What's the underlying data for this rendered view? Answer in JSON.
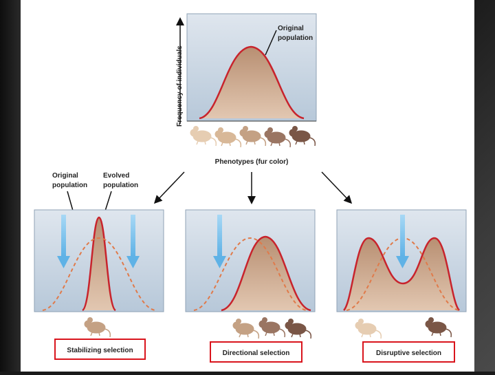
{
  "top": {
    "ylabel": "Frequency of individuals",
    "curve_label_line1": "Original",
    "curve_label_line2": "population",
    "xlabel": "Phenotypes (fur color)"
  },
  "left_labels": {
    "original_line1": "Original",
    "original_line2": "population",
    "evolved_line1": "Evolved",
    "evolved_line2": "population"
  },
  "panels": [
    {
      "caption": "Stabilizing selection"
    },
    {
      "caption": "Directional selection"
    },
    {
      "caption": "Disruptive selection"
    }
  ],
  "colors": {
    "curve": "#c8232c",
    "fill": "#c9a58a",
    "dashed": "#e07a4a",
    "arrow": "#6cb8e8",
    "highlight": "#d9141c"
  },
  "icons": [
    "mouse-icon"
  ]
}
